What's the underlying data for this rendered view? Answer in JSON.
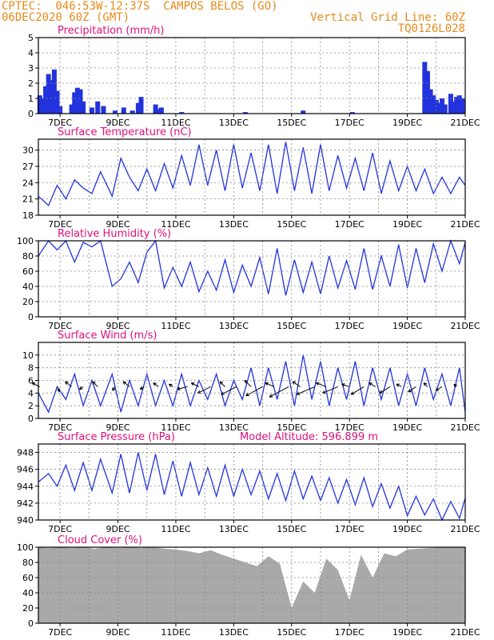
{
  "header": {
    "line1": "CPTEC:  046:53W-12:37S  CAMPOS BELOS (GO)",
    "line2": "06DEC2020 60Z (GMT)",
    "grid_note": "Vertical Grid Line: 60Z",
    "code": "TQ0126L028",
    "text_color": "#e88a1a"
  },
  "colors": {
    "title": "#e0107a",
    "series": "#2233dd",
    "cloud": "#a9a9a9",
    "grid": "#888888"
  },
  "chart_data": [
    {
      "type": "bar",
      "title": "Precipitation (mm/h)",
      "x_tick_labels": [
        "7DEC",
        "9DEC",
        "11DEC",
        "13DEC",
        "15DEC",
        "17DEC",
        "19DEC",
        "21DEC"
      ],
      "y_ticks": [
        0,
        1,
        2,
        3,
        4,
        5
      ],
      "ylim": [
        0,
        5
      ],
      "xlim": [
        6.25,
        21
      ],
      "x": [
        6.3,
        6.4,
        6.5,
        6.6,
        6.7,
        6.8,
        6.9,
        7.0,
        7.4,
        7.5,
        7.6,
        7.7,
        7.8,
        8.1,
        8.3,
        8.5,
        8.9,
        9.2,
        9.5,
        9.7,
        9.8,
        10.3,
        10.4,
        10.5,
        11.2,
        13.4,
        15.4,
        17.1,
        19.6,
        19.7,
        19.8,
        19.9,
        20.0,
        20.1,
        20.2,
        20.3,
        20.5,
        20.6,
        20.7,
        20.8,
        20.9
      ],
      "values": [
        1.2,
        1.0,
        1.8,
        2.6,
        2.2,
        2.9,
        1.5,
        0.5,
        0.6,
        1.4,
        1.7,
        1.6,
        0.8,
        0.4,
        0.8,
        0.5,
        0.2,
        0.4,
        0.2,
        0.7,
        1.1,
        0.6,
        0.3,
        0.4,
        0.1,
        0.1,
        0.2,
        0.1,
        3.4,
        2.8,
        1.6,
        1.2,
        0.9,
        0.7,
        1.0,
        0.6,
        1.3,
        0.8,
        1.1,
        1.2,
        1.0
      ]
    },
    {
      "type": "line",
      "title": "Surface Temperature (nC)",
      "x_tick_labels": [
        "7DEC",
        "9DEC",
        "11DEC",
        "13DEC",
        "15DEC",
        "17DEC",
        "19DEC",
        "21DEC"
      ],
      "y_ticks": [
        18,
        21,
        24,
        27,
        30
      ],
      "ylim": [
        18,
        32
      ],
      "xlim": [
        6.25,
        21
      ],
      "x": [
        6.25,
        6.6,
        6.9,
        7.2,
        7.5,
        7.8,
        8.1,
        8.4,
        8.8,
        9.1,
        9.4,
        9.7,
        10.0,
        10.3,
        10.6,
        10.9,
        11.2,
        11.5,
        11.8,
        12.1,
        12.4,
        12.7,
        13.0,
        13.3,
        13.6,
        13.9,
        14.2,
        14.5,
        14.8,
        15.1,
        15.4,
        15.7,
        16.0,
        16.3,
        16.6,
        16.9,
        17.2,
        17.5,
        17.8,
        18.1,
        18.4,
        18.7,
        19.0,
        19.3,
        19.6,
        19.9,
        20.2,
        20.5,
        20.8,
        21.0
      ],
      "y": [
        21.5,
        19.8,
        23.5,
        21.0,
        24.5,
        23.0,
        22.0,
        26.0,
        21.5,
        28.5,
        25.0,
        22.5,
        26.5,
        22.5,
        27.5,
        23.0,
        29.0,
        23.5,
        31.0,
        23.5,
        30.0,
        22.5,
        31.0,
        23.0,
        29.5,
        22.5,
        31.0,
        22.0,
        31.5,
        22.5,
        30.5,
        22.0,
        31.0,
        22.5,
        29.0,
        23.0,
        28.5,
        22.5,
        29.5,
        22.0,
        28.0,
        22.5,
        27.0,
        22.5,
        26.5,
        22.0,
        25.0,
        22.0,
        25.0,
        23.5
      ]
    },
    {
      "type": "line",
      "title": "Relative Humidity (%)",
      "x_tick_labels": [
        "7DEC",
        "9DEC",
        "11DEC",
        "13DEC",
        "15DEC",
        "17DEC",
        "19DEC",
        "21DEC"
      ],
      "y_ticks": [
        0,
        20,
        40,
        60,
        80,
        100
      ],
      "ylim": [
        0,
        100
      ],
      "xlim": [
        6.25,
        21
      ],
      "x": [
        6.25,
        6.6,
        6.9,
        7.2,
        7.5,
        7.8,
        8.1,
        8.4,
        8.8,
        9.1,
        9.4,
        9.7,
        10.0,
        10.3,
        10.6,
        10.9,
        11.2,
        11.5,
        11.8,
        12.1,
        12.4,
        12.7,
        13.0,
        13.3,
        13.6,
        13.9,
        14.2,
        14.5,
        14.8,
        15.1,
        15.4,
        15.7,
        16.0,
        16.3,
        16.6,
        16.9,
        17.2,
        17.5,
        17.8,
        18.1,
        18.4,
        18.7,
        19.0,
        19.3,
        19.6,
        19.9,
        20.2,
        20.5,
        20.8,
        21.0
      ],
      "y": [
        80,
        100,
        88,
        100,
        72,
        98,
        92,
        100,
        40,
        50,
        72,
        45,
        85,
        100,
        38,
        65,
        40,
        72,
        33,
        60,
        35,
        75,
        32,
        68,
        40,
        78,
        30,
        90,
        28,
        75,
        32,
        72,
        30,
        80,
        38,
        74,
        36,
        90,
        36,
        80,
        40,
        95,
        38,
        90,
        45,
        96,
        60,
        100,
        70,
        98
      ]
    },
    {
      "type": "line",
      "title": "Surface Wind (m/s)",
      "x_tick_labels": [
        "7DEC",
        "9DEC",
        "11DEC",
        "13DEC",
        "15DEC",
        "17DEC",
        "19DEC",
        "21DEC"
      ],
      "y_ticks": [
        0,
        2,
        4,
        6,
        8,
        10
      ],
      "ylim": [
        0,
        12
      ],
      "xlim": [
        6.25,
        21
      ],
      "x": [
        6.25,
        6.6,
        6.9,
        7.2,
        7.5,
        7.8,
        8.1,
        8.4,
        8.8,
        9.1,
        9.4,
        9.7,
        10.0,
        10.3,
        10.6,
        10.9,
        11.2,
        11.5,
        11.8,
        12.1,
        12.4,
        12.7,
        13.0,
        13.3,
        13.6,
        13.9,
        14.2,
        14.5,
        14.8,
        15.1,
        15.4,
        15.7,
        16.0,
        16.3,
        16.6,
        16.9,
        17.2,
        17.5,
        17.8,
        18.1,
        18.4,
        18.7,
        19.0,
        19.3,
        19.6,
        19.9,
        20.2,
        20.5,
        20.8,
        21.0
      ],
      "y": [
        4,
        1,
        5,
        3,
        7,
        2,
        6,
        2,
        7,
        1,
        6,
        2,
        7,
        2,
        6,
        2,
        7,
        2,
        6,
        3,
        7,
        2,
        6,
        3,
        8,
        2,
        8,
        3,
        9,
        2,
        10,
        3,
        9,
        2,
        8,
        3,
        9,
        2,
        8,
        3,
        8,
        2,
        7,
        2,
        8,
        3,
        7,
        2,
        8,
        1
      ],
      "vectors_x": [
        6.3,
        6.9,
        7.4,
        7.8,
        8.3,
        8.9,
        9.4,
        9.9,
        10.4,
        10.9,
        11.4,
        11.8,
        12.2,
        12.7,
        13.1,
        13.6,
        14.0,
        14.4,
        14.9,
        15.3,
        15.8,
        16.2,
        16.6,
        17.0,
        17.5,
        17.9,
        18.4,
        18.8,
        19.3,
        19.7,
        20.2,
        20.7
      ],
      "vectors_u": [
        -0.6,
        0.2,
        -0.5,
        -0.3,
        -0.4,
        -0.2,
        -0.5,
        -0.3,
        -0.4,
        -0.3,
        -0.8,
        -0.6,
        -1.0,
        -0.4,
        -1.2,
        -0.5,
        -1.3,
        -0.7,
        -1.5,
        -0.6,
        -1.4,
        -0.8,
        -1.2,
        -0.6,
        -1.0,
        -0.5,
        -0.8,
        -0.4,
        -0.6,
        -0.3,
        -0.5,
        -0.2
      ],
      "vectors_v": [
        0.3,
        -0.4,
        0.4,
        -0.2,
        0.4,
        -0.3,
        0.4,
        -0.2,
        0.3,
        0.2,
        -0.2,
        0.3,
        -0.5,
        0.4,
        -0.6,
        0.5,
        -0.7,
        0.3,
        -0.8,
        0.4,
        -0.6,
        0.3,
        -0.5,
        0.2,
        -0.6,
        0.3,
        -0.5,
        0.2,
        -0.4,
        0.3,
        -0.3,
        0.2
      ]
    },
    {
      "type": "line",
      "title": "Surface Pressure (hPa)",
      "annotation": "Model Altitude: 596.899 m",
      "x_tick_labels": [
        "7DEC",
        "9DEC",
        "11DEC",
        "13DEC",
        "15DEC",
        "17DEC",
        "19DEC",
        "21DEC"
      ],
      "y_ticks": [
        940,
        942,
        944,
        946,
        948
      ],
      "ylim": [
        940,
        949
      ],
      "xlim": [
        6.25,
        21
      ],
      "x": [
        6.25,
        6.6,
        6.9,
        7.2,
        7.5,
        7.8,
        8.1,
        8.4,
        8.8,
        9.1,
        9.4,
        9.7,
        10.0,
        10.3,
        10.6,
        10.9,
        11.2,
        11.5,
        11.8,
        12.1,
        12.4,
        12.7,
        13.0,
        13.3,
        13.6,
        13.9,
        14.2,
        14.5,
        14.8,
        15.1,
        15.4,
        15.7,
        16.0,
        16.3,
        16.6,
        16.9,
        17.2,
        17.5,
        17.8,
        18.1,
        18.4,
        18.7,
        19.0,
        19.3,
        19.6,
        19.9,
        20.2,
        20.5,
        20.8,
        21.0
      ],
      "y": [
        944.5,
        945.5,
        944.0,
        946.5,
        943.5,
        946.8,
        943.5,
        947.2,
        943.2,
        947.8,
        943.2,
        948.0,
        943.5,
        947.8,
        943.0,
        947.0,
        942.8,
        946.8,
        943.0,
        946.2,
        942.8,
        946.5,
        942.8,
        946.0,
        943.0,
        945.8,
        942.5,
        945.5,
        942.3,
        945.8,
        942.5,
        945.2,
        942.3,
        945.0,
        942.0,
        944.8,
        941.8,
        945.0,
        941.6,
        944.3,
        941.4,
        944.0,
        940.5,
        942.8,
        940.6,
        942.5,
        940.0,
        942.2,
        940.2,
        942.6
      ]
    },
    {
      "type": "area",
      "title": "Cloud Cover (%)",
      "x_tick_labels": [
        "7DEC",
        "9DEC",
        "11DEC",
        "13DEC",
        "15DEC",
        "17DEC",
        "19DEC",
        "21DEC"
      ],
      "y_ticks": [
        0,
        20,
        40,
        60,
        80,
        100
      ],
      "ylim": [
        0,
        100
      ],
      "xlim": [
        6.25,
        21
      ],
      "x": [
        6.25,
        6.6,
        7.0,
        7.4,
        7.8,
        8.2,
        8.6,
        9.0,
        9.4,
        9.8,
        10.2,
        10.6,
        11.0,
        11.4,
        11.8,
        12.2,
        12.6,
        13.0,
        13.4,
        13.8,
        14.2,
        14.6,
        15.0,
        15.4,
        15.8,
        16.2,
        16.6,
        17.0,
        17.4,
        17.8,
        18.2,
        18.6,
        19.0,
        19.4,
        19.8,
        20.2,
        20.6,
        21.0
      ],
      "y": [
        100,
        99,
        100,
        99,
        100,
        98,
        100,
        99,
        100,
        99,
        100,
        98,
        97,
        95,
        92,
        96,
        90,
        85,
        80,
        75,
        88,
        78,
        20,
        55,
        40,
        85,
        70,
        30,
        90,
        60,
        92,
        88,
        97,
        98,
        99,
        100,
        100,
        100
      ]
    }
  ]
}
